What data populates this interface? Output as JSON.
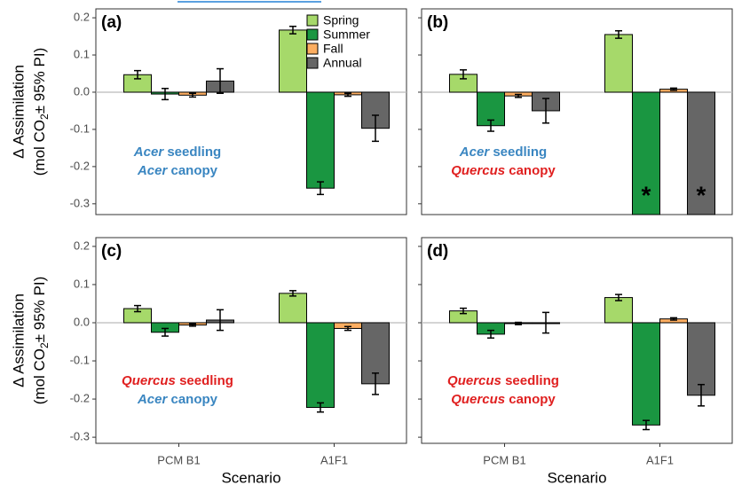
{
  "chart_data": [
    {
      "type": "bar",
      "panel_label": "(a)",
      "ylim": [
        -0.329,
        0.224
      ],
      "yticks": [
        0.2,
        0.1,
        {
          "value": 0,
          "label": "0.0"
        },
        -0.1,
        -0.2,
        -0.3
      ],
      "ylabel": {
        "line1": "Δ Assimilation",
        "line2": [
          "(mol CO",
          "2",
          "± 95% PI)"
        ]
      },
      "legend": "top-right",
      "series": [
        {
          "name": "Spring",
          "color": "#a6d96a",
          "values": [
            0.047,
            0.167
          ],
          "errors": [
            0.011,
            0.01
          ]
        },
        {
          "name": "Summer",
          "color": "#1a9641",
          "values": [
            -0.005,
            -0.258
          ],
          "errors": [
            0.015,
            0.017
          ]
        },
        {
          "name": "Fall",
          "color": "#fdae61",
          "values": [
            -0.008,
            -0.007
          ],
          "errors": [
            0.005,
            0.004
          ]
        },
        {
          "name": "Annual",
          "color": "#666666",
          "values": [
            0.03,
            -0.097
          ],
          "errors": [
            0.033,
            0.035
          ]
        }
      ],
      "seedling": {
        "genus": "Acer",
        "rest": "seedling",
        "color": "#3a86c1"
      },
      "canopy": {
        "genus": "Acer",
        "rest": "canopy",
        "color": "#3a86c1"
      }
    },
    {
      "type": "bar",
      "panel_label": "(b)",
      "ylim": [
        -0.329,
        0.224
      ],
      "yticks": [
        0.2,
        0.1,
        {
          "value": 0,
          "label": "0.0"
        },
        -0.1,
        -0.2,
        -0.3
      ],
      "series": [
        {
          "color": "#a6d96a",
          "values": [
            0.048,
            0.155
          ],
          "errors": [
            0.012,
            0.01
          ]
        },
        {
          "color": "#1a9641",
          "values": [
            -0.09,
            null
          ],
          "errors": [
            0.015,
            null
          ]
        },
        {
          "color": "#fdae61",
          "values": [
            -0.01,
            0.008
          ],
          "errors": [
            0.004,
            0.003
          ]
        },
        {
          "color": "#666666",
          "values": [
            -0.05,
            null
          ],
          "errors": [
            0.033,
            null
          ]
        }
      ],
      "annotations": [
        {
          "series": 1,
          "index": 1,
          "text": "*"
        },
        {
          "series": 3,
          "index": 1,
          "text": "*"
        }
      ],
      "seedling": {
        "genus": "Acer",
        "rest": "seedling",
        "color": "#3a86c1"
      },
      "canopy": {
        "genus": "Quercus",
        "rest": "canopy",
        "color": "#e02020"
      }
    },
    {
      "type": "bar",
      "panel_label": "(c)",
      "ylim": [
        -0.316,
        0.223
      ],
      "yticks": [
        0.2,
        0.1,
        {
          "value": 0,
          "label": "0.0"
        },
        -0.1,
        -0.2,
        -0.3
      ],
      "ylabel": {
        "line1": "Δ Assimilation",
        "line2": [
          "(mol CO",
          "2",
          "± 95% PI)"
        ]
      },
      "categories": [
        "PCM B1",
        "A1F1"
      ],
      "xlabel": "Scenario",
      "series": [
        {
          "color": "#a6d96a",
          "values": [
            0.037,
            0.077
          ],
          "errors": [
            0.008,
            0.007
          ]
        },
        {
          "color": "#1a9641",
          "values": [
            -0.025,
            -0.222
          ],
          "errors": [
            0.01,
            0.012
          ]
        },
        {
          "color": "#fdae61",
          "values": [
            -0.006,
            -0.015
          ],
          "errors": [
            0.003,
            0.005
          ]
        },
        {
          "color": "#666666",
          "values": [
            0.007,
            -0.16
          ],
          "errors": [
            0.027,
            0.028
          ]
        }
      ],
      "seedling": {
        "genus": "Quercus",
        "rest": "seedling",
        "color": "#e02020"
      },
      "canopy": {
        "genus": "Acer",
        "rest": "canopy",
        "color": "#3a86c1"
      }
    },
    {
      "type": "bar",
      "panel_label": "(d)",
      "ylim": [
        -0.316,
        0.223
      ],
      "yticks": [
        0.2,
        0.1,
        {
          "value": 0,
          "label": "0.0"
        },
        -0.1,
        -0.2,
        -0.3
      ],
      "categories": [
        "PCM B1",
        "A1F1"
      ],
      "xlabel": "Scenario",
      "series": [
        {
          "color": "#a6d96a",
          "values": [
            0.031,
            0.066
          ],
          "errors": [
            0.007,
            0.008
          ]
        },
        {
          "color": "#1a9641",
          "values": [
            -0.03,
            -0.268
          ],
          "errors": [
            0.01,
            0.012
          ]
        },
        {
          "color": "#fdae61",
          "values": [
            -0.002,
            0.01
          ],
          "errors": [
            0.003,
            0.003
          ]
        },
        {
          "color": "#666666",
          "values": [
            0,
            -0.19
          ],
          "errors": [
            0.027,
            0.028
          ]
        }
      ],
      "seedling": {
        "genus": "Quercus",
        "rest": "seedling",
        "color": "#e02020"
      },
      "canopy": {
        "genus": "Quercus",
        "rest": "canopy",
        "color": "#e02020"
      }
    }
  ]
}
